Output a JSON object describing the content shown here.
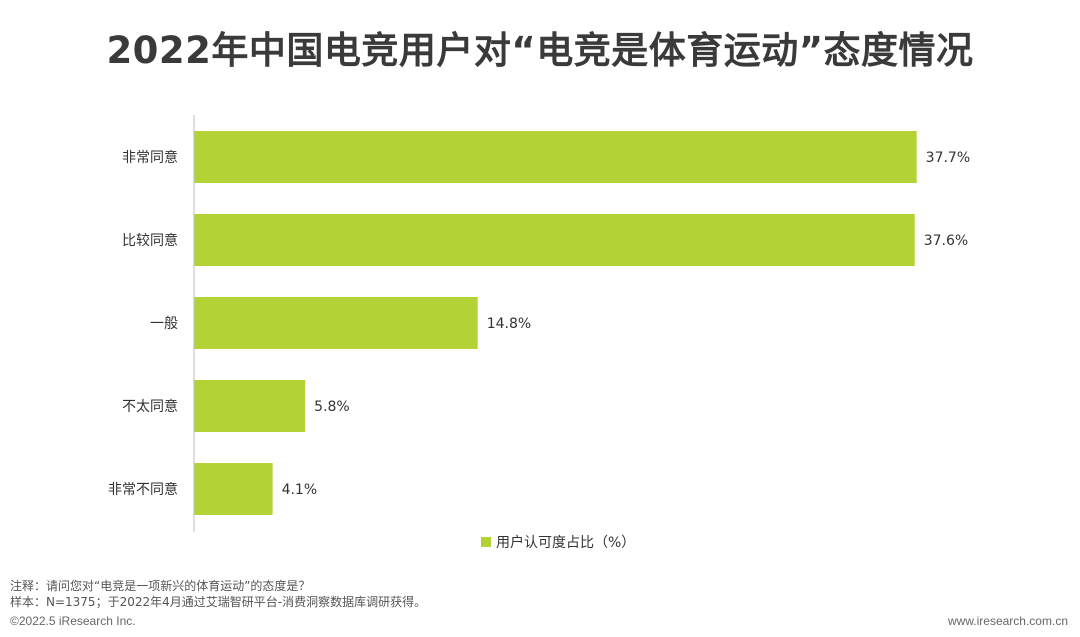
{
  "title": "2022年中国电竞用户对“电竞是体育运动”态度情况",
  "chart_data": {
    "type": "bar",
    "orientation": "horizontal",
    "categories": [
      "非常同意",
      "比较同意",
      "一般",
      "不太同意",
      "非常不同意"
    ],
    "series": [
      {
        "name": "用户认可度占比（%）",
        "values": [
          37.7,
          37.6,
          14.8,
          5.8,
          4.1
        ]
      }
    ],
    "data_labels": [
      "37.7%",
      "37.6%",
      "14.8%",
      "5.8%",
      "4.1%"
    ],
    "legend_position": "bottom-center",
    "grid": false,
    "bar_color": "#b2d235",
    "xlim": [
      0,
      38.5
    ]
  },
  "footnotes": {
    "note": "注释：请问您对“电竞是一项新兴的体育运动”的态度是？",
    "sample": "样本：N=1375；于2022年4月通过艾瑞智研平台-消费洞察数据库调研获得。"
  },
  "copyright": "©2022.5 iResearch Inc.",
  "website": "www.iresearch.com.cn"
}
